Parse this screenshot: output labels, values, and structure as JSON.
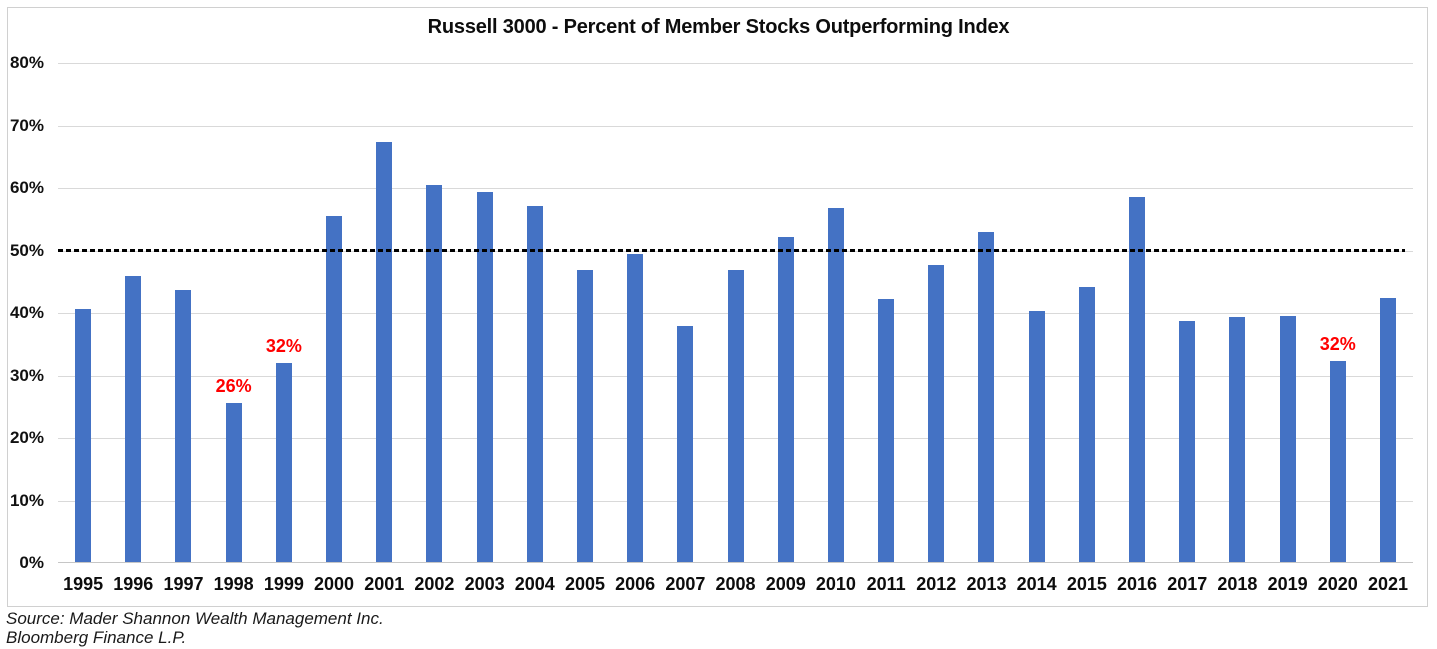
{
  "chart_data": {
    "type": "bar",
    "title": "Russell 3000 - Percent of Member Stocks Outperforming Index",
    "categories": [
      "1995",
      "1996",
      "1997",
      "1998",
      "1999",
      "2000",
      "2001",
      "2002",
      "2003",
      "2004",
      "2005",
      "2006",
      "2007",
      "2008",
      "2009",
      "2010",
      "2011",
      "2012",
      "2013",
      "2014",
      "2015",
      "2016",
      "2017",
      "2018",
      "2019",
      "2020",
      "2021"
    ],
    "values": [
      40.6,
      45.9,
      43.7,
      25.6,
      32.0,
      55.6,
      67.4,
      60.5,
      59.3,
      57.1,
      46.9,
      49.4,
      37.9,
      46.9,
      52.2,
      56.8,
      42.3,
      47.7,
      52.9,
      40.4,
      44.1,
      58.6,
      38.8,
      39.3,
      39.6,
      32.4,
      42.4
    ],
    "xlabel": "",
    "ylabel": "",
    "ylim": [
      0,
      80
    ],
    "ytick_values": [
      80,
      70,
      60,
      50,
      40,
      30,
      20,
      10,
      0
    ],
    "ytick_suffix": "%",
    "grid": "horizontal",
    "legend": "none",
    "bar_color": "#4472c4",
    "gridline_color": "#d9d9d9",
    "reference_line": {
      "value": 50,
      "style": "dashed",
      "color": "#000000"
    },
    "annotations": [
      {
        "category": "1998",
        "label": "26%"
      },
      {
        "category": "1999",
        "label": "32%"
      },
      {
        "category": "2020",
        "label": "32%"
      }
    ],
    "annotation_color": "#ff0000",
    "source_lines": [
      "Source: Mader Shannon Wealth Management Inc.",
      "Bloomberg Finance L.P."
    ]
  }
}
